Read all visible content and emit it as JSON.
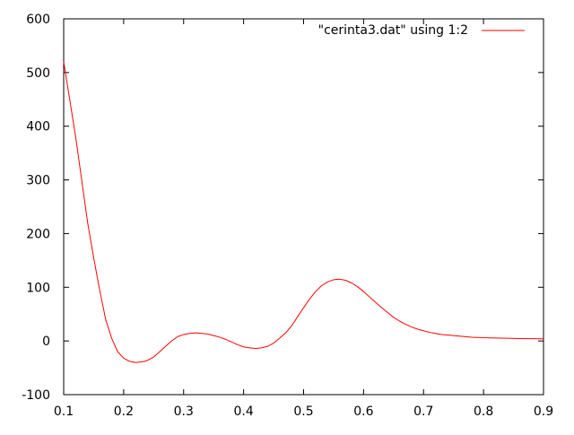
{
  "chart_data": {
    "type": "line",
    "title": "",
    "xlabel": "",
    "ylabel": "",
    "xlim": [
      0.1,
      0.9
    ],
    "ylim": [
      -100,
      600
    ],
    "xticks": [
      0.1,
      0.2,
      0.3,
      0.4,
      0.5,
      0.6,
      0.7,
      0.8,
      0.9
    ],
    "yticks": [
      -100,
      0,
      100,
      200,
      300,
      400,
      500,
      600
    ],
    "xtick_labels": [
      "0.1",
      "0.2",
      "0.3",
      "0.4",
      "0.5",
      "0.6",
      "0.7",
      "0.8",
      "0.9"
    ],
    "ytick_labels": [
      "-100",
      "0",
      "100",
      "200",
      "300",
      "400",
      "500",
      "600"
    ],
    "grid": false,
    "legend": {
      "position": "top-right",
      "entries": [
        "\"cerinta3.dat\" using 1:2"
      ]
    },
    "series": [
      {
        "name": "\"cerinta3.dat\" using 1:2",
        "color": "#ff0000",
        "x": [
          0.1,
          0.11,
          0.12,
          0.13,
          0.14,
          0.15,
          0.16,
          0.17,
          0.18,
          0.19,
          0.2,
          0.21,
          0.22,
          0.23,
          0.235,
          0.24,
          0.25,
          0.26,
          0.27,
          0.28,
          0.29,
          0.3,
          0.31,
          0.32,
          0.33,
          0.34,
          0.35,
          0.36,
          0.37,
          0.38,
          0.39,
          0.4,
          0.41,
          0.42,
          0.43,
          0.44,
          0.45,
          0.46,
          0.47,
          0.48,
          0.49,
          0.5,
          0.51,
          0.52,
          0.53,
          0.54,
          0.55,
          0.56,
          0.57,
          0.58,
          0.59,
          0.6,
          0.61,
          0.62,
          0.63,
          0.64,
          0.65,
          0.66,
          0.67,
          0.68,
          0.69,
          0.7,
          0.71,
          0.72,
          0.73,
          0.74,
          0.75,
          0.76,
          0.77,
          0.78,
          0.79,
          0.8,
          0.82,
          0.84,
          0.86,
          0.88,
          0.9
        ],
        "values": [
          520,
          450,
          380,
          300,
          220,
          155,
          95,
          40,
          5,
          -20,
          -32,
          -38,
          -40,
          -39,
          -38,
          -36,
          -30,
          -20,
          -10,
          0,
          8,
          12,
          14,
          15,
          14,
          13,
          10,
          7,
          3,
          -2,
          -7,
          -11,
          -13,
          -14,
          -13,
          -10,
          -4,
          5,
          15,
          28,
          45,
          62,
          78,
          92,
          103,
          110,
          114,
          115,
          113,
          108,
          101,
          92,
          82,
          72,
          62,
          53,
          44,
          37,
          31,
          26,
          22,
          19,
          16,
          14,
          12,
          11,
          10,
          9,
          8,
          7,
          6.5,
          6,
          5.5,
          5,
          4.5,
          4.2,
          4
        ]
      }
    ]
  }
}
